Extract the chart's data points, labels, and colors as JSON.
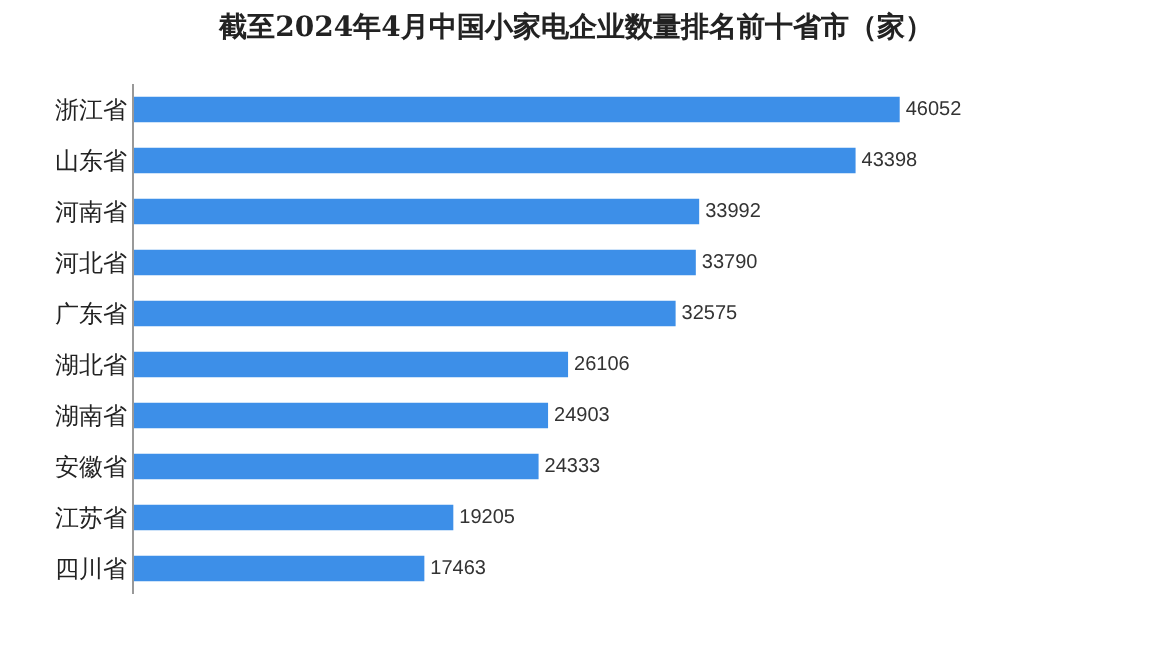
{
  "chart_data": {
    "type": "bar",
    "orientation": "horizontal",
    "title": "截至2024年4月中国小家电企业数量排名前十省市（家）",
    "categories": [
      "浙江省",
      "山东省",
      "河南省",
      "河北省",
      "广东省",
      "湖北省",
      "湖南省",
      "安徽省",
      "江苏省",
      "四川省"
    ],
    "values": [
      46052,
      43398,
      33992,
      33790,
      32575,
      26106,
      24903,
      24333,
      19205,
      17463
    ],
    "color": "#3d8fe8",
    "data_labels": true,
    "tick_labels": "y"
  }
}
